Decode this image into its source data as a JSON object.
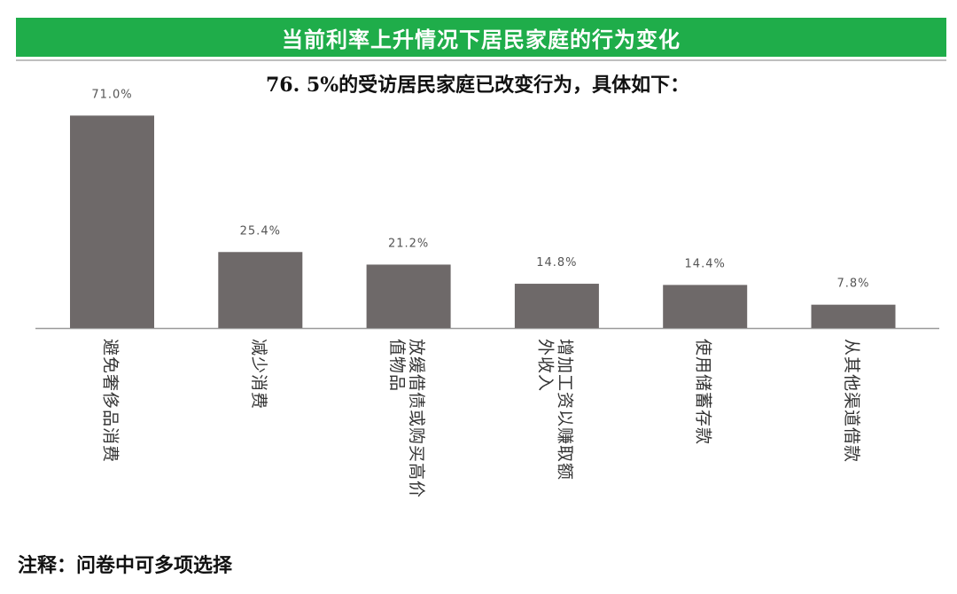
{
  "header": {
    "title": "当前利率上升情况下居民家庭的行为变化"
  },
  "subtitle": "76. 5%的受访居民家庭已改变行为，具体如下：",
  "note": "注释：问卷中可多项选择",
  "colors": {
    "header": "#1fad4a",
    "bar": "#6e6969",
    "axis": "#999999",
    "text": "#333333"
  },
  "chart_data": {
    "type": "bar",
    "title": "",
    "xlabel": "",
    "ylabel": "",
    "categories": [
      "避免奢侈品消费",
      "减少消费",
      "放缓借债或购买高价值物品",
      "增加工资以赚取额外收入",
      "使用储蓄存款",
      "从其他渠道借款"
    ],
    "category_lines": [
      [
        "避免奢侈品消费"
      ],
      [
        "减少消费"
      ],
      [
        "放缓借债或购买高价",
        "值物品"
      ],
      [
        "增加工资以赚取额",
        "外收入"
      ],
      [
        "使用储蓄存款"
      ],
      [
        "从其他渠道借款"
      ]
    ],
    "values": [
      71.0,
      25.4,
      21.2,
      14.8,
      14.4,
      7.8
    ],
    "value_labels": [
      "71.0%",
      "25.4%",
      "21.2%",
      "14.8%",
      "14.4%",
      "7.8%"
    ],
    "ylim": [
      0,
      80
    ],
    "grid": false,
    "legend": "none"
  }
}
